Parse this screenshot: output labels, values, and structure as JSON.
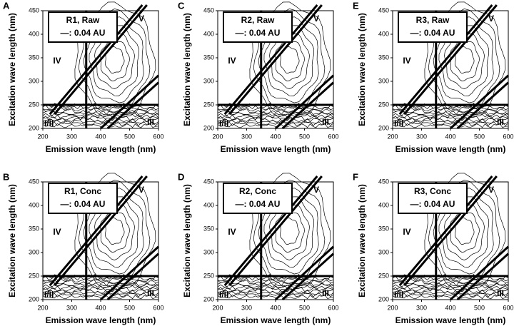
{
  "chart_data": [
    {
      "type": "contour",
      "panel": "A",
      "title": "R1, Raw",
      "legend": "—: 0.04 AU",
      "x_label": "Emission wave length (nm)",
      "y_label": "Excitation wave length (nm)",
      "xlim": [
        200,
        600
      ],
      "ylim": [
        200,
        450
      ],
      "xticks": [
        200,
        300,
        400,
        500,
        600
      ],
      "yticks": [
        200,
        250,
        300,
        350,
        400,
        450
      ],
      "boundaries": {
        "excitation": 250,
        "emission": 350
      },
      "regions": [
        "I/II",
        "III",
        "IV",
        "V"
      ]
    },
    {
      "type": "contour",
      "panel": "B",
      "title": "R1, Conc",
      "legend": "—: 0.04 AU",
      "x_label": "Emission wave length (nm)",
      "y_label": "Excitation wave length (nm)",
      "xlim": [
        200,
        600
      ],
      "ylim": [
        200,
        450
      ],
      "xticks": [
        200,
        300,
        400,
        500,
        600
      ],
      "yticks": [
        200,
        250,
        300,
        350,
        400,
        450
      ],
      "boundaries": {
        "excitation": 250,
        "emission": 350
      },
      "regions": [
        "I/II",
        "III",
        "IV",
        "V"
      ]
    },
    {
      "type": "contour",
      "panel": "C",
      "title": "R2, Raw",
      "legend": "—: 0.04 AU",
      "x_label": "Emission wave length (nm)",
      "y_label": "Excitation wave length (nm)",
      "xlim": [
        200,
        600
      ],
      "ylim": [
        200,
        450
      ],
      "xticks": [
        200,
        300,
        400,
        500,
        600
      ],
      "yticks": [
        200,
        250,
        300,
        350,
        400,
        450
      ],
      "boundaries": {
        "excitation": 250,
        "emission": 350
      },
      "regions": [
        "I/II",
        "III",
        "IV",
        "V"
      ]
    },
    {
      "type": "contour",
      "panel": "D",
      "title": "R2, Conc",
      "legend": "—: 0.04 AU",
      "x_label": "Emission wave length (nm)",
      "y_label": "Excitation wave length (nm)",
      "xlim": [
        200,
        600
      ],
      "ylim": [
        200,
        450
      ],
      "xticks": [
        200,
        300,
        400,
        500,
        600
      ],
      "yticks": [
        200,
        250,
        300,
        350,
        400,
        450
      ],
      "boundaries": {
        "excitation": 250,
        "emission": 350
      },
      "regions": [
        "I/II",
        "III",
        "IV",
        "V"
      ]
    },
    {
      "type": "contour",
      "panel": "E",
      "title": "R3, Raw",
      "legend": "—: 0.04 AU",
      "x_label": "Emission wave length (nm)",
      "y_label": "Excitation wave length (nm)",
      "xlim": [
        200,
        600
      ],
      "ylim": [
        200,
        450
      ],
      "xticks": [
        200,
        300,
        400,
        500,
        600
      ],
      "yticks": [
        200,
        250,
        300,
        350,
        400,
        450
      ],
      "boundaries": {
        "excitation": 250,
        "emission": 350
      },
      "regions": [
        "I/II",
        "III",
        "IV",
        "V"
      ]
    },
    {
      "type": "contour",
      "panel": "F",
      "title": "R3, Conc",
      "legend": "—: 0.04 AU",
      "x_label": "Emission wave length (nm)",
      "y_label": "Excitation wave length (nm)",
      "xlim": [
        200,
        600
      ],
      "ylim": [
        200,
        450
      ],
      "xticks": [
        200,
        300,
        400,
        500,
        600
      ],
      "yticks": [
        200,
        250,
        300,
        350,
        400,
        450
      ],
      "boundaries": {
        "excitation": 250,
        "emission": 350
      },
      "regions": [
        "I/II",
        "III",
        "IV",
        "V"
      ]
    }
  ]
}
